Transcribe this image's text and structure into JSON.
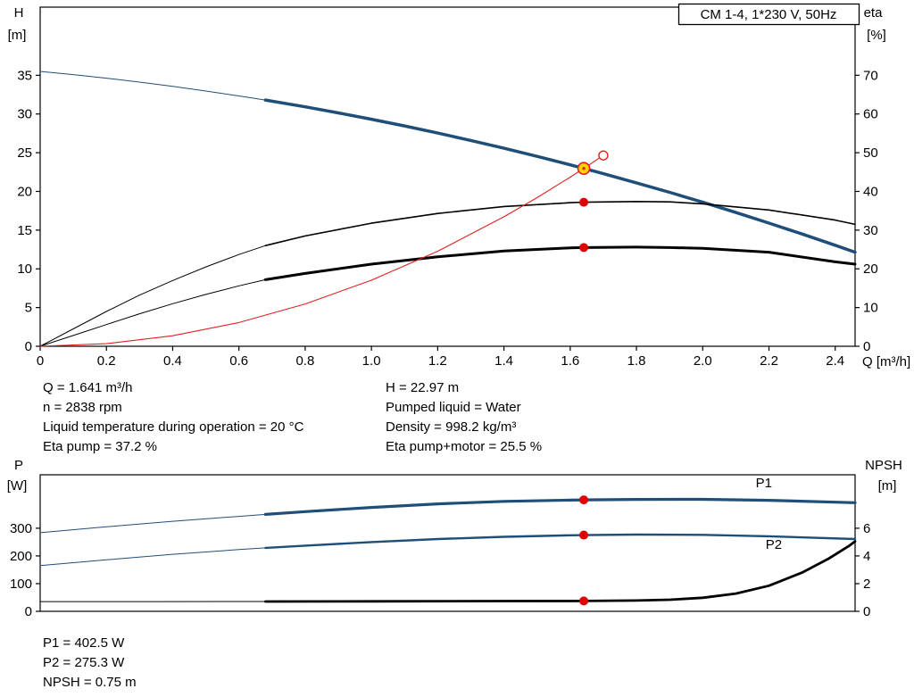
{
  "colors": {
    "blue": "#1f4e79",
    "black": "#000000",
    "red": "#e02020",
    "marker_red": "#e00000",
    "operating_fill": "#ffd400"
  },
  "top_info": {
    "left": [
      "Q = 1.641 m³/h",
      "n = 2838 rpm",
      "Liquid temperature during operation = 20 °C",
      "Eta pump = 37.2 %"
    ],
    "right": [
      "H = 22.97 m",
      "Pumped liquid = Water",
      "Density = 998.2 kg/m³",
      "Eta pump+motor = 25.5 %"
    ]
  },
  "bottom_info": [
    "P1 = 402.5 W",
    "P2 = 275.3 W",
    "NPSH = 0.75 m"
  ],
  "chart_data": [
    {
      "type": "line",
      "title": "CM 1-4, 1*230 V, 50Hz",
      "x": {
        "label": "Q [m³/h]",
        "min": 0,
        "max": 2.46,
        "ticks": [
          "0",
          "0.2",
          "0.4",
          "0.6",
          "0.8",
          "1.0",
          "1.2",
          "1.4",
          "1.6",
          "1.8",
          "2.0",
          "2.2",
          "2.4"
        ]
      },
      "y_left": {
        "label_lines": [
          "H",
          "[m]"
        ],
        "min": 0,
        "max": 43.8,
        "ticks": [
          "0",
          "5",
          "10",
          "15",
          "20",
          "25",
          "30",
          "35"
        ]
      },
      "y_right": {
        "label_lines": [
          "eta",
          "[%]"
        ],
        "min": 0,
        "max": 87.6,
        "ticks": [
          "0",
          "10",
          "20",
          "30",
          "40",
          "50",
          "60",
          "70"
        ]
      },
      "series": [
        {
          "name": "head-curve-low-flow",
          "axis": "left",
          "color": "#1f4e79",
          "width": 1,
          "points": [
            [
              0,
              35.5
            ],
            [
              0.1,
              35.09
            ],
            [
              0.2,
              34.63
            ],
            [
              0.3,
              34.12
            ],
            [
              0.4,
              33.57
            ],
            [
              0.5,
              32.97
            ],
            [
              0.6,
              32.33
            ],
            [
              0.68,
              31.8
            ]
          ]
        },
        {
          "name": "head-curve",
          "axis": "left",
          "color": "#1f4e79",
          "width": 3.5,
          "points": [
            [
              0.68,
              31.8
            ],
            [
              0.8,
              30.92
            ],
            [
              0.9,
              30.14
            ],
            [
              1.0,
              29.32
            ],
            [
              1.1,
              28.46
            ],
            [
              1.2,
              27.54
            ],
            [
              1.3,
              26.58
            ],
            [
              1.4,
              25.58
            ],
            [
              1.5,
              24.53
            ],
            [
              1.6,
              23.43
            ],
            [
              1.641,
              22.97
            ],
            [
              1.7,
              22.29
            ],
            [
              1.8,
              21.11
            ],
            [
              1.9,
              19.88
            ],
            [
              2.0,
              18.6
            ],
            [
              2.1,
              17.28
            ],
            [
              2.2,
              15.91
            ],
            [
              2.3,
              14.5
            ],
            [
              2.4,
              13.05
            ],
            [
              2.46,
              12.15
            ]
          ]
        },
        {
          "name": "eta-pump-curve-low-flow",
          "axis": "right",
          "color": "#000000",
          "width": 1,
          "points": [
            [
              0,
              0
            ],
            [
              0.1,
              4.5
            ],
            [
              0.2,
              9
            ],
            [
              0.3,
              13.2
            ],
            [
              0.4,
              17
            ],
            [
              0.5,
              20.5
            ],
            [
              0.6,
              23.7
            ],
            [
              0.68,
              26
            ]
          ]
        },
        {
          "name": "eta-pump-curve",
          "axis": "right",
          "color": "#000000",
          "width": 1.6,
          "points": [
            [
              0.68,
              26
            ],
            [
              0.8,
              28.5
            ],
            [
              1.0,
              31.8
            ],
            [
              1.2,
              34.3
            ],
            [
              1.4,
              36.1
            ],
            [
              1.6,
              37.1
            ],
            [
              1.641,
              37.2
            ],
            [
              1.8,
              37.4
            ],
            [
              1.9,
              37.3
            ],
            [
              2.0,
              36.8
            ],
            [
              2.2,
              35.2
            ],
            [
              2.4,
              32.6
            ],
            [
              2.46,
              31.5
            ]
          ]
        },
        {
          "name": "eta-pump-motor-curve-low-flow",
          "axis": "right",
          "color": "#000000",
          "width": 1,
          "points": [
            [
              0,
              0
            ],
            [
              0.1,
              2.8
            ],
            [
              0.2,
              5.6
            ],
            [
              0.3,
              8.4
            ],
            [
              0.4,
              11
            ],
            [
              0.5,
              13.4
            ],
            [
              0.6,
              15.6
            ],
            [
              0.68,
              17.2
            ]
          ]
        },
        {
          "name": "eta-pump-motor-curve",
          "axis": "right",
          "color": "#000000",
          "width": 3,
          "points": [
            [
              0.68,
              17.2
            ],
            [
              0.8,
              18.8
            ],
            [
              1.0,
              21.2
            ],
            [
              1.2,
              23.1
            ],
            [
              1.4,
              24.6
            ],
            [
              1.6,
              25.4
            ],
            [
              1.641,
              25.5
            ],
            [
              1.8,
              25.6
            ],
            [
              1.9,
              25.5
            ],
            [
              2.0,
              25.3
            ],
            [
              2.2,
              24.3
            ],
            [
              2.4,
              21.8
            ],
            [
              2.46,
              21.2
            ]
          ]
        },
        {
          "name": "system-curve",
          "axis": "left",
          "color": "#e02020",
          "width": 1.1,
          "points": [
            [
              0,
              0
            ],
            [
              0.2,
              0.34
            ],
            [
              0.4,
              1.36
            ],
            [
              0.6,
              3.07
            ],
            [
              0.8,
              5.46
            ],
            [
              1.0,
              8.53
            ],
            [
              1.2,
              12.28
            ],
            [
              1.4,
              16.72
            ],
            [
              1.5,
              19.19
            ],
            [
              1.6,
              21.84
            ],
            [
              1.65,
              23.22
            ],
            [
              1.7,
              24.65
            ]
          ]
        }
      ],
      "labels": [],
      "markers": [
        {
          "name": "system-curve-end-point",
          "style": "open",
          "x": 1.7,
          "y": 24.65,
          "axis": "left"
        },
        {
          "name": "eta-pump-duty-point",
          "style": "dot",
          "x": 1.641,
          "y": 37.2,
          "axis": "right"
        },
        {
          "name": "eta-pump-motor-duty-point",
          "style": "dot",
          "x": 1.641,
          "y": 25.5,
          "axis": "right"
        },
        {
          "name": "operating-point",
          "style": "operating",
          "x": 1.641,
          "y": 22.97,
          "axis": "left"
        }
      ]
    },
    {
      "type": "line",
      "title": "",
      "x": {
        "min": 0,
        "max": 2.46,
        "ticks": []
      },
      "y_left": {
        "label_lines": [
          "P",
          "[W]"
        ],
        "min": 0,
        "max": 493,
        "ticks": [
          "0",
          "100",
          "200",
          "300"
        ]
      },
      "y_right": {
        "label_lines": [
          "NPSH",
          "[m]"
        ],
        "min": 0,
        "max": 9.86,
        "ticks": [
          "0",
          "2",
          "4",
          "6"
        ]
      },
      "series": [
        {
          "name": "p1-curve-low-flow",
          "axis": "left",
          "color": "#1f4e79",
          "width": 1,
          "points": [
            [
              0,
              284
            ],
            [
              0.2,
              305
            ],
            [
              0.4,
              325
            ],
            [
              0.6,
              343
            ],
            [
              0.68,
              350
            ]
          ]
        },
        {
          "name": "p1-curve",
          "axis": "left",
          "color": "#1f4e79",
          "width": 3.2,
          "points": [
            [
              0.68,
              350
            ],
            [
              0.8,
              360
            ],
            [
              1.0,
              375
            ],
            [
              1.2,
              388
            ],
            [
              1.4,
              397
            ],
            [
              1.6,
              401.5
            ],
            [
              1.641,
              402.5
            ],
            [
              1.8,
              404
            ],
            [
              2.0,
              404.5
            ],
            [
              2.2,
              401
            ],
            [
              2.46,
              392
            ]
          ]
        },
        {
          "name": "p2-curve-low-flow",
          "axis": "left",
          "color": "#1f4e79",
          "width": 1,
          "points": [
            [
              0,
              165
            ],
            [
              0.2,
              186
            ],
            [
              0.4,
              206
            ],
            [
              0.6,
              223
            ],
            [
              0.68,
              229
            ]
          ]
        },
        {
          "name": "p2-curve",
          "axis": "left",
          "color": "#1f4e79",
          "width": 2.4,
          "points": [
            [
              0.68,
              229
            ],
            [
              0.8,
              237
            ],
            [
              1.0,
              250
            ],
            [
              1.2,
              261
            ],
            [
              1.4,
              269
            ],
            [
              1.6,
              274.5
            ],
            [
              1.641,
              275.3
            ],
            [
              1.8,
              277
            ],
            [
              2.0,
              276
            ],
            [
              2.2,
              271
            ],
            [
              2.46,
              261
            ]
          ]
        },
        {
          "name": "npsh-curve-low-flow",
          "axis": "right",
          "color": "#000000",
          "width": 1,
          "points": [
            [
              0,
              0.7
            ],
            [
              0.35,
              0.7
            ],
            [
              0.68,
              0.71
            ]
          ]
        },
        {
          "name": "npsh-curve",
          "axis": "right",
          "color": "#000000",
          "width": 2.8,
          "points": [
            [
              0.68,
              0.71
            ],
            [
              1.0,
              0.72
            ],
            [
              1.4,
              0.74
            ],
            [
              1.641,
              0.75
            ],
            [
              1.8,
              0.78
            ],
            [
              1.9,
              0.84
            ],
            [
              2.0,
              0.98
            ],
            [
              2.1,
              1.28
            ],
            [
              2.2,
              1.85
            ],
            [
              2.3,
              2.8
            ],
            [
              2.38,
              3.8
            ],
            [
              2.44,
              4.7
            ],
            [
              2.46,
              5.05
            ]
          ]
        }
      ],
      "labels": [
        {
          "text": "P1",
          "x": 2.16,
          "y": 448,
          "axis": "left",
          "color": "#1f4e79"
        },
        {
          "text": "P2",
          "x": 2.19,
          "y": 225,
          "axis": "left",
          "color": "#1f4e79"
        }
      ],
      "markers": [
        {
          "name": "p1-duty-point",
          "style": "dot",
          "x": 1.641,
          "y": 402.5,
          "axis": "left"
        },
        {
          "name": "p2-duty-point",
          "style": "dot",
          "x": 1.641,
          "y": 275.3,
          "axis": "left"
        },
        {
          "name": "npsh-duty-point",
          "style": "dot",
          "x": 1.641,
          "y": 0.75,
          "axis": "right"
        }
      ]
    }
  ]
}
